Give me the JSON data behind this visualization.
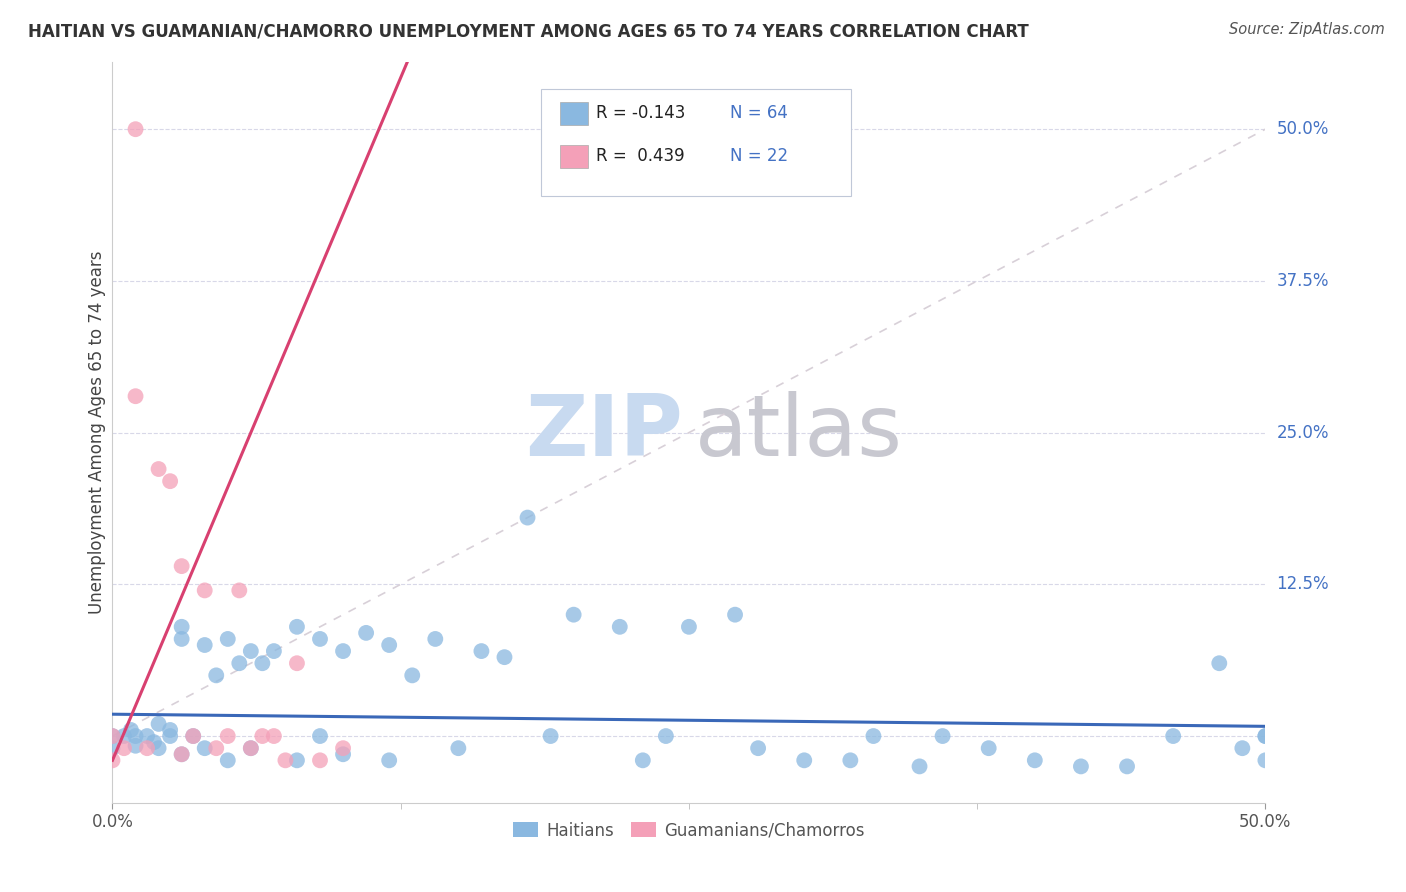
{
  "title": "HAITIAN VS GUAMANIAN/CHAMORRO UNEMPLOYMENT AMONG AGES 65 TO 74 YEARS CORRELATION CHART",
  "source": "Source: ZipAtlas.com",
  "ylabel": "Unemployment Among Ages 65 to 74 years",
  "xmin": 0.0,
  "xmax": 0.5,
  "ymin": -0.055,
  "ymax": 0.555,
  "ytick_vals": [
    0.0,
    0.125,
    0.25,
    0.375,
    0.5
  ],
  "ytick_labels": [
    "",
    "12.5%",
    "25.0%",
    "37.5%",
    "50.0%"
  ],
  "xtick_vals": [
    0.0,
    0.5
  ],
  "xtick_labels": [
    "0.0%",
    "50.0%"
  ],
  "haitian_color": "#8ab8e0",
  "guamanian_color": "#f4a0b8",
  "haitian_line_color": "#3a68b8",
  "guamanian_line_color": "#d84070",
  "diag_line_color": "#d8d0d8",
  "background_color": "#ffffff",
  "grid_color": "#d8d8e8",
  "tick_color": "#4472c4",
  "ytick_right_color": "#4472c4",
  "watermark_zip_color": "#c8daf0",
  "watermark_atlas_color": "#c8c8d0",
  "legend_edge_color": "#c0c8d8",
  "r_text_color": "#d84070",
  "n_text_color": "#4472c4",
  "haitian_r": -0.143,
  "haitian_n": 64,
  "guamanian_r": 0.439,
  "guamanian_n": 22,
  "haitian_slope": -0.02,
  "haitian_intercept": 0.018,
  "guamanian_slope": 4.5,
  "guamanian_intercept": -0.02,
  "haitian_x": [
    0.0,
    0.0,
    0.005,
    0.008,
    0.01,
    0.01,
    0.015,
    0.018,
    0.02,
    0.02,
    0.025,
    0.025,
    0.03,
    0.03,
    0.03,
    0.035,
    0.04,
    0.04,
    0.045,
    0.05,
    0.05,
    0.055,
    0.06,
    0.06,
    0.065,
    0.07,
    0.08,
    0.08,
    0.09,
    0.09,
    0.1,
    0.1,
    0.11,
    0.12,
    0.12,
    0.13,
    0.14,
    0.15,
    0.16,
    0.17,
    0.18,
    0.19,
    0.2,
    0.22,
    0.23,
    0.24,
    0.25,
    0.27,
    0.28,
    0.3,
    0.32,
    0.33,
    0.35,
    0.36,
    0.38,
    0.4,
    0.42,
    0.44,
    0.46,
    0.48,
    0.49,
    0.5,
    0.5,
    0.5
  ],
  "haitian_y": [
    0.0,
    -0.01,
    0.0,
    0.005,
    -0.008,
    0.0,
    0.0,
    -0.005,
    0.01,
    -0.01,
    0.0,
    0.005,
    0.08,
    0.09,
    -0.015,
    0.0,
    0.075,
    -0.01,
    0.05,
    0.08,
    -0.02,
    0.06,
    0.07,
    -0.01,
    0.06,
    0.07,
    0.09,
    -0.02,
    0.08,
    0.0,
    0.07,
    -0.015,
    0.085,
    0.075,
    -0.02,
    0.05,
    0.08,
    -0.01,
    0.07,
    0.065,
    0.18,
    0.0,
    0.1,
    0.09,
    -0.02,
    0.0,
    0.09,
    0.1,
    -0.01,
    -0.02,
    -0.02,
    0.0,
    -0.025,
    0.0,
    -0.01,
    -0.02,
    -0.025,
    -0.025,
    0.0,
    0.06,
    -0.01,
    -0.02,
    0.0,
    0.0
  ],
  "guamanian_x": [
    0.01,
    0.0,
    0.0,
    0.005,
    0.01,
    0.015,
    0.02,
    0.025,
    0.03,
    0.03,
    0.035,
    0.04,
    0.045,
    0.05,
    0.055,
    0.06,
    0.065,
    0.07,
    0.075,
    0.08,
    0.09,
    0.1
  ],
  "guamanian_y": [
    0.5,
    -0.02,
    0.0,
    -0.01,
    0.28,
    -0.01,
    0.22,
    0.21,
    -0.015,
    0.14,
    0.0,
    0.12,
    -0.01,
    0.0,
    0.12,
    -0.01,
    0.0,
    0.0,
    -0.02,
    0.06,
    -0.02,
    -0.01
  ]
}
